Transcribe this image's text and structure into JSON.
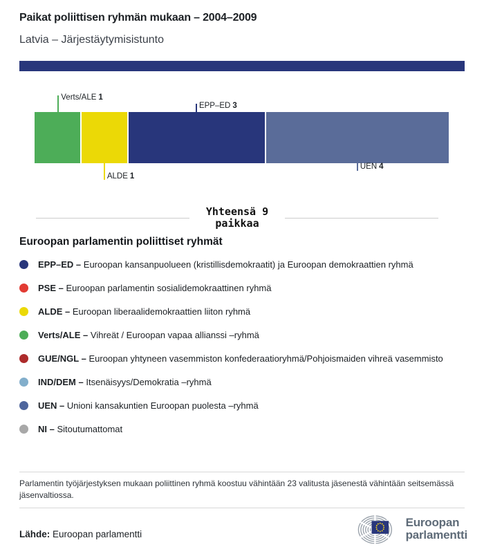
{
  "header": {
    "title": "Paikat poliittisen ryhmän mukaan – 2004–2009",
    "subtitle": "Latvia – Järjestäytymisistunto",
    "band_color": "#28367b"
  },
  "chart_data": {
    "type": "bar",
    "title": "Paikat poliittisen ryhmän mukaan – 2004–2009",
    "subtitle": "Latvia – Järjestäytymisistunto",
    "orientation": "horizontal-stacked",
    "total_seats": 9,
    "total_line1": "Yhteensä 9",
    "total_line2": "paikkaa",
    "segments": [
      {
        "group": "Verts/ALE",
        "seats": 1,
        "color": "#4dad58",
        "label_position": "above-far"
      },
      {
        "group": "ALDE",
        "seats": 1,
        "color": "#ebd906",
        "label_position": "below-far"
      },
      {
        "group": "EPP–ED",
        "seats": 3,
        "color": "#28367b",
        "label_position": "above-near"
      },
      {
        "group": "UEN",
        "seats": 4,
        "color": "#5a6c99",
        "label_position": "below-near"
      }
    ]
  },
  "legend": {
    "heading": "Euroopan parlamentin poliittiset ryhmät",
    "items": [
      {
        "abbr": "EPP–ED –",
        "description": "Euroopan kansanpuolueen (kristillisdemokraatit) ja Euroopan demokraattien ryhmä",
        "color": "#28367b"
      },
      {
        "abbr": "PSE –",
        "description": "Euroopan parlamentin sosialidemokraattinen ryhmä",
        "color": "#e23b33"
      },
      {
        "abbr": "ALDE –",
        "description": "Euroopan liberaalidemokraattien liiton ryhmä",
        "color": "#ebd906"
      },
      {
        "abbr": "Verts/ALE –",
        "description": "Vihreät / Euroopan vapaa allianssi –ryhmä",
        "color": "#4dad58"
      },
      {
        "abbr": "GUE/NGL –",
        "description": "Euroopan yhtyneen vasemmiston konfederaatioryhmä/Pohjoismaiden vihreä vasemmisto",
        "color": "#ad2b2b"
      },
      {
        "abbr": "IND/DEM –",
        "description": "Itsenäisyys/Demokratia –ryhmä",
        "color": "#82aecb"
      },
      {
        "abbr": "UEN –",
        "description": "Unioni kansakuntien Euroopan puolesta –ryhmä",
        "color": "#4e659c"
      },
      {
        "abbr": "NI –",
        "description": "Sitoutumattomat",
        "color": "#a8a8a8"
      }
    ]
  },
  "footer": {
    "note": "Parlamentin työjärjestyksen mukaan poliittinen ryhmä koostuu vähintään 23 valitusta jäsenestä vähintään seitsemässä jäsenvaltiossa.",
    "source_label": "Lähde:",
    "source_value": "Euroopan parlamentti",
    "logo_line1": "Euroopan",
    "logo_line2": "parlamentti",
    "logo_text_color": "#5e6b78",
    "logo_flag_color": "#28367b",
    "logo_star_color": "#f5d11b"
  }
}
